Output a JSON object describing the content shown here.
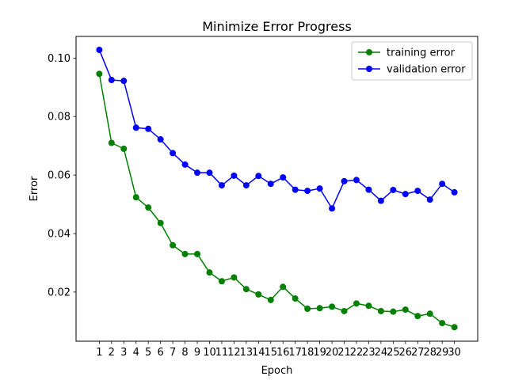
{
  "chart_data": {
    "type": "line",
    "title": "Minimize Error Progress",
    "xlabel": "Epoch",
    "ylabel": "Error",
    "x": [
      1,
      2,
      3,
      4,
      5,
      6,
      7,
      8,
      9,
      10,
      11,
      12,
      13,
      14,
      15,
      16,
      17,
      18,
      19,
      20,
      21,
      22,
      23,
      24,
      25,
      26,
      27,
      28,
      29,
      30
    ],
    "xlim": [
      -0.9,
      31.9
    ],
    "ylim": [
      0.0032,
      0.1074
    ],
    "yticks": [
      0.02,
      0.04,
      0.06,
      0.08,
      0.1
    ],
    "ytick_labels": [
      "0.02",
      "0.04",
      "0.06",
      "0.08",
      "0.10"
    ],
    "grid": false,
    "legend_position": "top-right",
    "series": [
      {
        "name": "training error",
        "color": "#008000",
        "marker": "circle",
        "values": [
          0.0946,
          0.071,
          0.069,
          0.0524,
          0.0489,
          0.0436,
          0.036,
          0.033,
          0.033,
          0.0267,
          0.0237,
          0.025,
          0.021,
          0.0192,
          0.0173,
          0.0218,
          0.0178,
          0.0143,
          0.0145,
          0.015,
          0.0135,
          0.0161,
          0.0153,
          0.0135,
          0.0133,
          0.014,
          0.0118,
          0.0126,
          0.0094,
          0.008
        ]
      },
      {
        "name": "validation error",
        "color": "#0000ff",
        "marker": "circle",
        "values": [
          0.1028,
          0.0925,
          0.0922,
          0.0762,
          0.0758,
          0.0722,
          0.0675,
          0.0636,
          0.0608,
          0.0608,
          0.0565,
          0.0598,
          0.0565,
          0.0597,
          0.057,
          0.0592,
          0.055,
          0.0546,
          0.0554,
          0.0486,
          0.0579,
          0.0583,
          0.055,
          0.0512,
          0.0549,
          0.0535,
          0.0546,
          0.0516,
          0.057,
          0.0541
        ]
      }
    ]
  }
}
